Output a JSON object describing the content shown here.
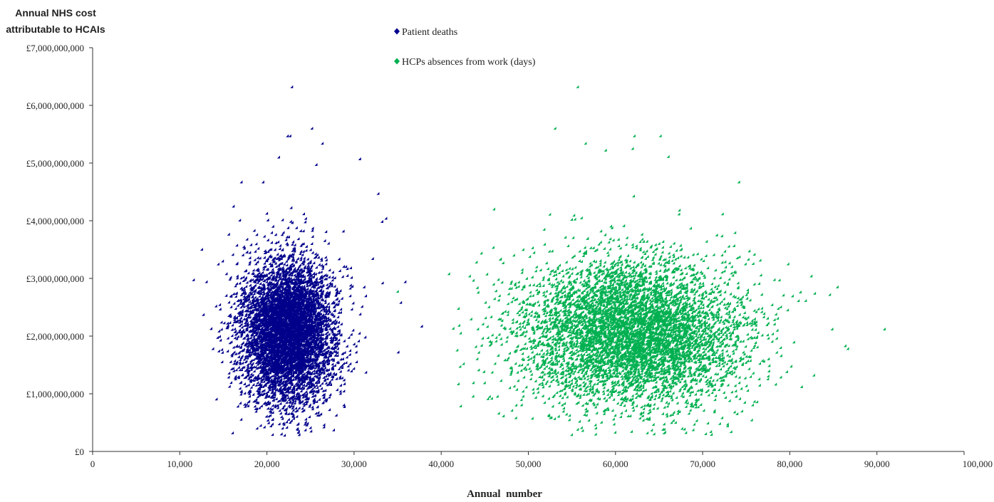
{
  "chart_data": {
    "type": "scatter",
    "ylabel_lines": [
      "Annual NHS cost",
      "attributable to HCAIs"
    ],
    "xlabel": "Annual  number",
    "xlim": [
      0,
      100000
    ],
    "ylim": [
      0,
      7000000000
    ],
    "x_ticks": [
      "0",
      "10,000",
      "20,000",
      "30,000",
      "40,000",
      "50,000",
      "60,000",
      "70,000",
      "80,000",
      "90,000",
      "100,000"
    ],
    "y_ticks": [
      "£0",
      "£1,000,000,000",
      "£2,000,000,000",
      "£3,000,000,000",
      "£4,000,000,000",
      "£5,000,000,000",
      "£6,000,000,000",
      "£7,000,000,000"
    ],
    "legend_position": "top-center",
    "grid": false,
    "series": [
      {
        "name": "Patient deaths",
        "color": "#00008B",
        "marker": "diamond",
        "cluster": {
          "x_mean": 22500,
          "x_sd": 3000,
          "y_mean": 2050000000,
          "y_sd": 650000000,
          "count": 6000
        },
        "points": [
          [
            23000,
            6300000000
          ],
          [
            22500,
            5450000000
          ],
          [
            22800,
            5450000000
          ],
          [
            25300,
            5580000000
          ],
          [
            26500,
            5320000000
          ],
          [
            21500,
            5080000000
          ],
          [
            30800,
            5050000000
          ],
          [
            25800,
            4950000000
          ],
          [
            17200,
            4650000000
          ],
          [
            19700,
            4650000000
          ],
          [
            16300,
            4230000000
          ],
          [
            13200,
            2920000000
          ],
          [
            37900,
            2150000000
          ],
          [
            36000,
            2920000000
          ],
          [
            35500,
            2560000000
          ],
          [
            35200,
            1700000000
          ],
          [
            16200,
            300000000
          ],
          [
            21800,
            280000000
          ],
          [
            25200,
            330000000
          ],
          [
            27800,
            350000000
          ],
          [
            24500,
            450000000
          ],
          [
            19000,
            380000000
          ],
          [
            20600,
            420000000
          ],
          [
            33400,
            2900000000
          ],
          [
            33800,
            4020000000
          ],
          [
            32900,
            4450000000
          ],
          [
            31500,
            1350000000
          ]
        ]
      },
      {
        "name": "HCPs absences from work (days)",
        "color": "#00B050",
        "marker": "diamond",
        "cluster": {
          "x_mean": 62000,
          "x_sd": 7000,
          "y_mean": 2050000000,
          "y_sd": 650000000,
          "count": 6000
        },
        "points": [
          [
            55800,
            6300000000
          ],
          [
            53200,
            5580000000
          ],
          [
            65300,
            5450000000
          ],
          [
            62300,
            5450000000
          ],
          [
            56700,
            5320000000
          ],
          [
            59000,
            5200000000
          ],
          [
            62100,
            5230000000
          ],
          [
            66200,
            5090000000
          ],
          [
            74300,
            4650000000
          ],
          [
            46200,
            4180000000
          ],
          [
            43400,
            3020000000
          ],
          [
            42100,
            1150000000
          ],
          [
            42300,
            1450000000
          ],
          [
            42700,
            1500000000
          ],
          [
            91000,
            2100000000
          ],
          [
            86500,
            1810000000
          ],
          [
            86800,
            1760000000
          ],
          [
            85600,
            2830000000
          ],
          [
            83000,
            2720000000
          ],
          [
            82600,
            3020000000
          ],
          [
            73400,
            320000000
          ],
          [
            72100,
            460000000
          ],
          [
            65700,
            300000000
          ],
          [
            60100,
            310000000
          ],
          [
            55800,
            360000000
          ],
          [
            48700,
            560000000
          ],
          [
            73000,
            420000000
          ],
          [
            82900,
            1300000000
          ],
          [
            81500,
            1100000000
          ],
          [
            85000,
            2100000000
          ]
        ]
      }
    ]
  }
}
